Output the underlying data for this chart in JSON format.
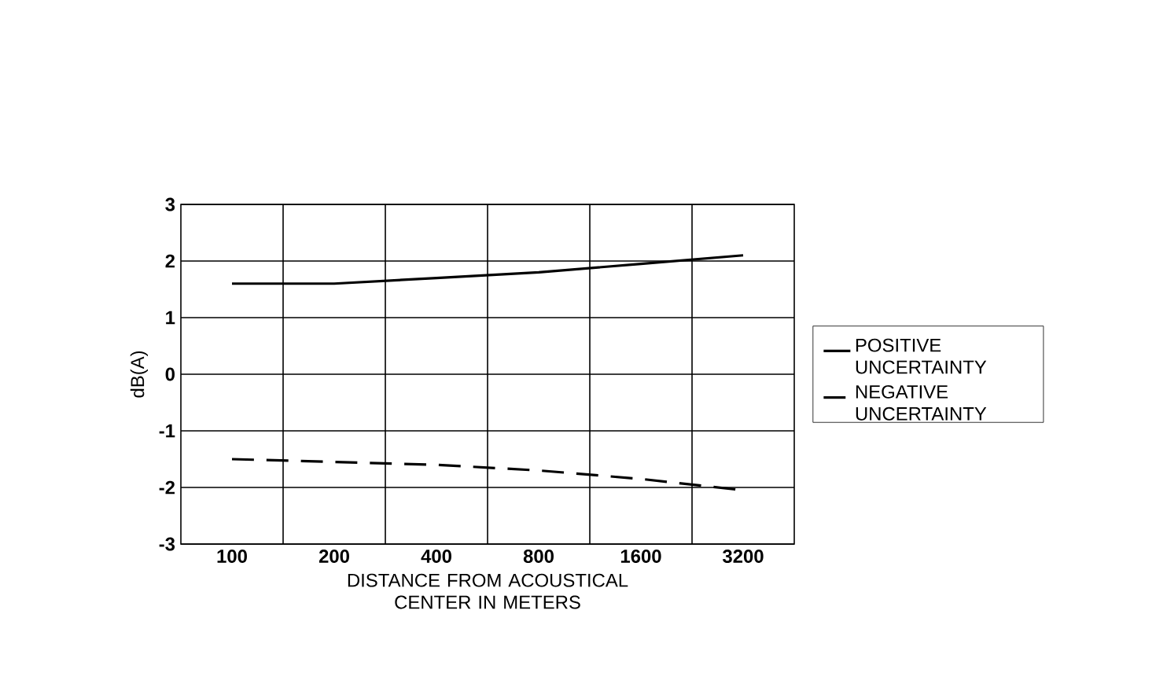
{
  "chart_data": {
    "type": "line",
    "xlabel": "DISTANCE FROM ACOUSTICAL CENTER IN METERS",
    "ylabel": "dB(A)",
    "categories": [
      "100",
      "200",
      "400",
      "800",
      "1600",
      "3200"
    ],
    "series": [
      {
        "name": "POSITIVE UNCERTAINTY",
        "color": "#000000",
        "line_style": "solid",
        "values": [
          1.6,
          1.6,
          1.7,
          1.8,
          1.95,
          2.1
        ]
      },
      {
        "name": "NEGATIVE UNCERTAINTY",
        "color": "#000000",
        "line_style": "dashed",
        "values": [
          -1.5,
          -1.55,
          -1.6,
          -1.7,
          -1.85,
          -2.05
        ]
      }
    ],
    "ylim": [
      -3,
      3
    ],
    "yticks": [
      -3,
      -2,
      -1,
      0,
      1,
      2,
      3
    ],
    "grid": true,
    "legend": "right"
  }
}
